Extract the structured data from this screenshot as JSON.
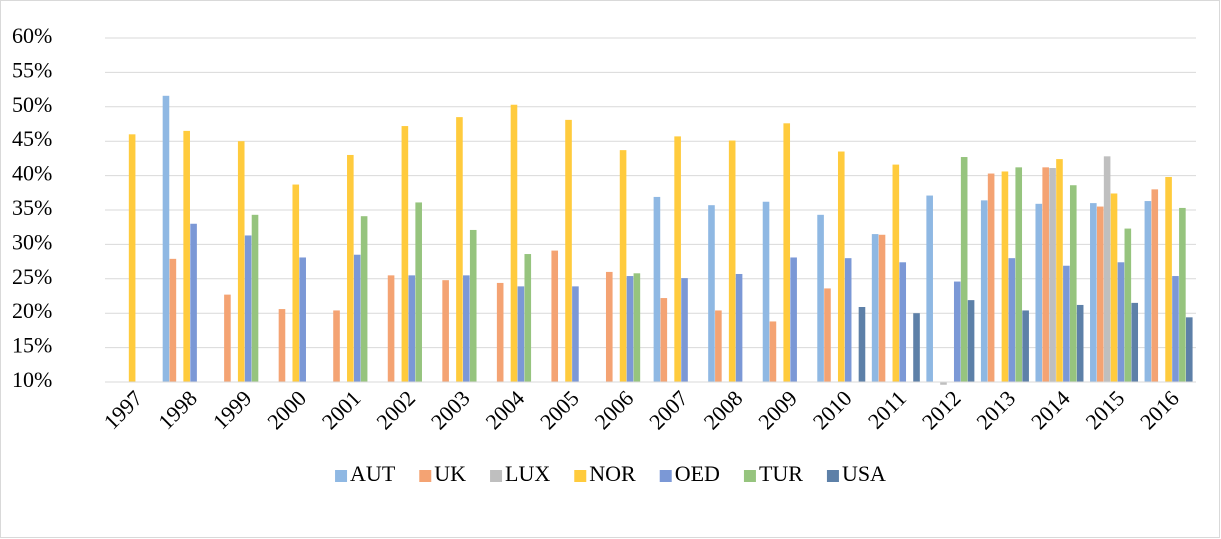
{
  "chart_data": {
    "type": "bar",
    "categories": [
      "1997",
      "1998",
      "1999",
      "2000",
      "2001",
      "2002",
      "2003",
      "2004",
      "2005",
      "2006",
      "2007",
      "2008",
      "2009",
      "2010",
      "2011",
      "2012",
      "2013",
      "2014",
      "2015",
      "2016"
    ],
    "series": [
      {
        "name": "AUT",
        "color": "#8fb8e3",
        "values": [
          null,
          51.6,
          null,
          null,
          null,
          null,
          null,
          null,
          null,
          null,
          36.9,
          35.7,
          36.2,
          34.3,
          31.5,
          37.1,
          36.4,
          35.9,
          36,
          36.3
        ]
      },
      {
        "name": "UK",
        "color": "#f4a373",
        "values": [
          null,
          27.9,
          22.7,
          20.6,
          20.4,
          25.5,
          24.8,
          24.4,
          29.1,
          26,
          22.2,
          20.4,
          18.8,
          23.6,
          31.4,
          null,
          40.3,
          41.2,
          35.5,
          38
        ]
      },
      {
        "name": "LUX",
        "color": "#bfbfbf",
        "values": [
          null,
          null,
          null,
          null,
          null,
          null,
          null,
          null,
          null,
          null,
          null,
          null,
          null,
          null,
          null,
          9.6,
          null,
          41.1,
          42.8,
          null
        ]
      },
      {
        "name": "NOR",
        "color": "#ffcb3d",
        "values": [
          46,
          46.5,
          45,
          38.7,
          43,
          47.2,
          48.5,
          50.3,
          48.1,
          43.7,
          45.7,
          45.1,
          47.6,
          43.5,
          41.6,
          null,
          40.6,
          42.4,
          37.4,
          39.8
        ]
      },
      {
        "name": "OED",
        "color": "#7b98d6",
        "values": [
          null,
          33,
          31.3,
          28.1,
          28.5,
          25.5,
          25.5,
          23.9,
          23.9,
          25.4,
          25.1,
          25.7,
          28.1,
          28,
          27.4,
          24.6,
          28,
          26.9,
          27.4,
          25.4
        ]
      },
      {
        "name": "TUR",
        "color": "#96c47e",
        "values": [
          null,
          null,
          34.3,
          null,
          34.1,
          36.1,
          32.1,
          28.6,
          null,
          25.8,
          null,
          null,
          null,
          null,
          null,
          42.7,
          41.2,
          38.6,
          32.3,
          35.3
        ]
      },
      {
        "name": "USA",
        "color": "#5d80a8",
        "values": [
          null,
          null,
          null,
          null,
          null,
          null,
          null,
          null,
          null,
          null,
          null,
          null,
          null,
          20.9,
          20,
          21.9,
          20.4,
          21.2,
          21.5,
          19.4
        ]
      }
    ],
    "ylim": [
      10,
      60
    ],
    "yticks": [
      {
        "value": 10,
        "label": "10%"
      },
      {
        "value": 15,
        "label": "15%"
      },
      {
        "value": 20,
        "label": "20%"
      },
      {
        "value": 25,
        "label": "25%"
      },
      {
        "value": 30,
        "label": "30%"
      },
      {
        "value": 35,
        "label": "35%"
      },
      {
        "value": 40,
        "label": "40%"
      },
      {
        "value": 45,
        "label": "45%"
      },
      {
        "value": 50,
        "label": "50%"
      },
      {
        "value": 55,
        "label": "55%"
      },
      {
        "value": 60,
        "label": "60%"
      }
    ],
    "grid": true,
    "legend": "bottom"
  }
}
